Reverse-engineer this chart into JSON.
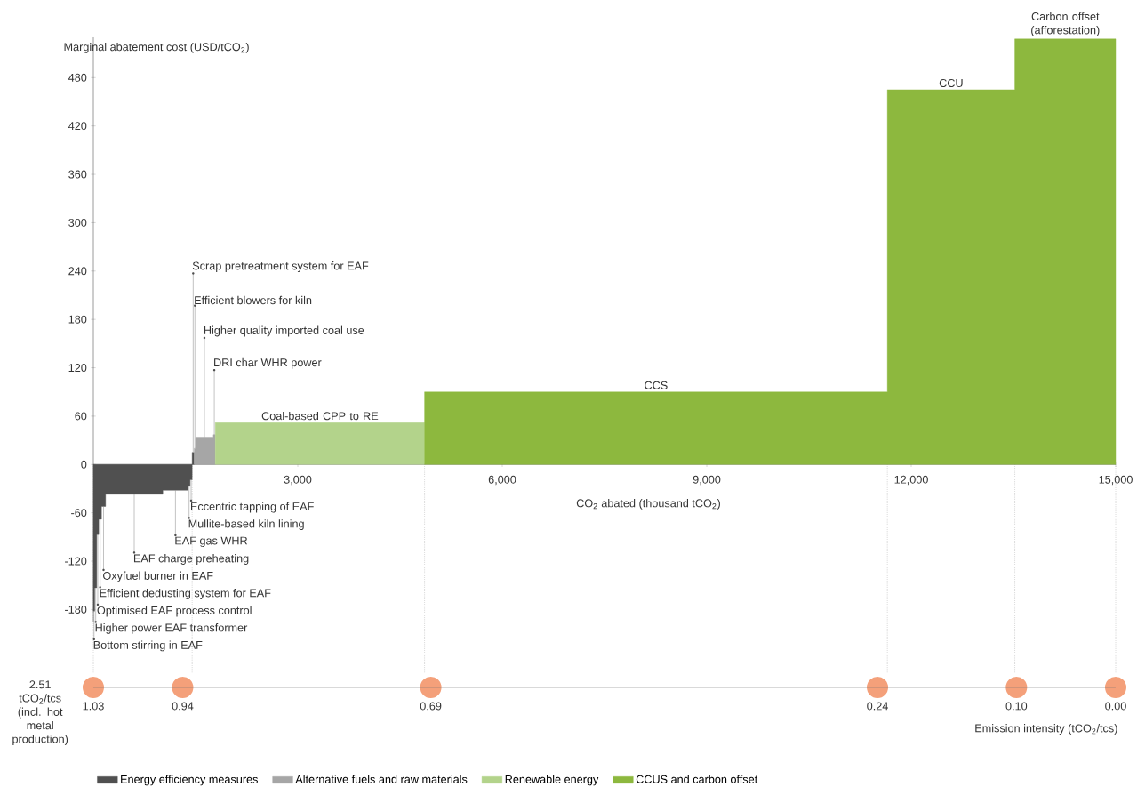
{
  "chart_data": {
    "type": "area",
    "ylabel": "Marginal abatement cost (USD/tCO$_{2}$)",
    "xlabel": "CO$_{2}$ abated (thousand tCO$_{2}$)",
    "xlim": [
      0,
      15000
    ],
    "ylim": [
      -195,
      530
    ],
    "xticks": [
      {
        "value": 3000,
        "label": "3,000"
      },
      {
        "value": 6000,
        "label": "6,000"
      },
      {
        "value": 9000,
        "label": "9,000"
      },
      {
        "value": 12000,
        "label": "12,000"
      },
      {
        "value": 15000,
        "label": "15,000"
      }
    ],
    "yticks": [
      -180,
      -120,
      -60,
      0,
      60,
      120,
      180,
      240,
      300,
      360,
      420,
      480
    ],
    "x2label": "Emission intensity (tCO$_{2}$/tcs)",
    "x2lim": [
      1.03,
      0
    ],
    "x2ticks": [
      1.03,
      0.94,
      0.69,
      0.24,
      {
        "value": 0.1,
        "label": "0.10"
      },
      {
        "value": 0,
        "label": "0.00"
      }
    ],
    "legend": "bottom",
    "series": [
      {
        "name": "Energy efficiency measures",
        "color": "#505050",
        "x": [
          0,
          20,
          20,
          50,
          50,
          80,
          80,
          120,
          120,
          180,
          180,
          1020,
          1020,
          1390,
          1390,
          1420,
          1420,
          1450,
          1450,
          1480
        ],
        "values": [
          -182,
          -182,
          -153,
          -153,
          -87,
          -87,
          -68,
          -68,
          -52,
          -52,
          -37,
          -37,
          -32,
          -32,
          -27,
          -27,
          -19,
          -19,
          15,
          15
        ]
      },
      {
        "name": "Alternative fuels and raw materials",
        "color": "#a6a6a6",
        "x": [
          1480,
          1500,
          1500,
          1760,
          1760,
          1790
        ],
        "values": [
          20,
          20,
          34,
          34,
          37,
          37
        ]
      },
      {
        "name": "Renewable energy",
        "color": "#b3d38b",
        "x": [
          1790,
          4860
        ],
        "values": [
          52,
          52
        ]
      },
      {
        "name": "CCUS and carbon offset",
        "color": "#8db83e",
        "x": [
          4860,
          11650,
          11650,
          13520,
          13520,
          15000
        ],
        "values": [
          90,
          90,
          465,
          465,
          528,
          528
        ]
      }
    ],
    "ref_lines": [
      {
        "axis": "x",
        "value": 0,
        "color": "#808080",
        "line_style": "dotted"
      },
      {
        "axis": "x",
        "value": 1450,
        "color": "#808080",
        "line_style": "dotted"
      },
      {
        "axis": "x",
        "value": 4860,
        "color": "#808080",
        "line_style": "dotted"
      },
      {
        "axis": "x",
        "value": 11650,
        "color": "#808080",
        "line_style": "dotted"
      },
      {
        "axis": "x",
        "value": 13520,
        "color": "#808080",
        "line_style": "dotted"
      },
      {
        "axis": "x",
        "value": 15000,
        "color": "#808080",
        "line_style": "dotted"
      }
    ],
    "annotations": [
      {
        "text": "Bottom stirring in EAF",
        "x": 10,
        "y": -182
      },
      {
        "text": "Higher power EAF transformer",
        "x": 35,
        "y": -153
      },
      {
        "text": "Optimised EAF process control",
        "x": 65,
        "y": -87
      },
      {
        "text": "Efficient dedusting system for EAF",
        "x": 100,
        "y": -68
      },
      {
        "text": "Oxyfuel burner in EAF",
        "x": 150,
        "y": -52
      },
      {
        "text": "EAF charge preheating",
        "x": 600,
        "y": -37
      },
      {
        "text": "EAF gas WHR",
        "x": 1205,
        "y": -32
      },
      {
        "text": "Mullite-based kiln lining",
        "x": 1405,
        "y": -27
      },
      {
        "text": "Eccentric tapping of EAF",
        "x": 1435,
        "y": -19
      },
      {
        "text": "Scrap pretreatment system for EAF",
        "x": 1465,
        "y": 15
      },
      {
        "text": "Efficient blowers for kiln",
        "x": 1490,
        "y": 20
      },
      {
        "text": "Higher quality imported coal use",
        "x": 1630,
        "y": 34
      },
      {
        "text": "DRI char WHR power",
        "x": 1775,
        "y": 37
      },
      {
        "text": "Coal-based CPP to RE",
        "x": 3325,
        "y": 52
      },
      {
        "text": "CCS",
        "x": 8255,
        "y": 90
      },
      {
        "text": "CCU",
        "x": 12585,
        "y": 465
      },
      {
        "text": "Carbon offset (afforestation)",
        "x": 14260,
        "y": 528
      },
      "2.51 tCO$_{2}$/tcs (incl. hot metal production)"
    ]
  }
}
